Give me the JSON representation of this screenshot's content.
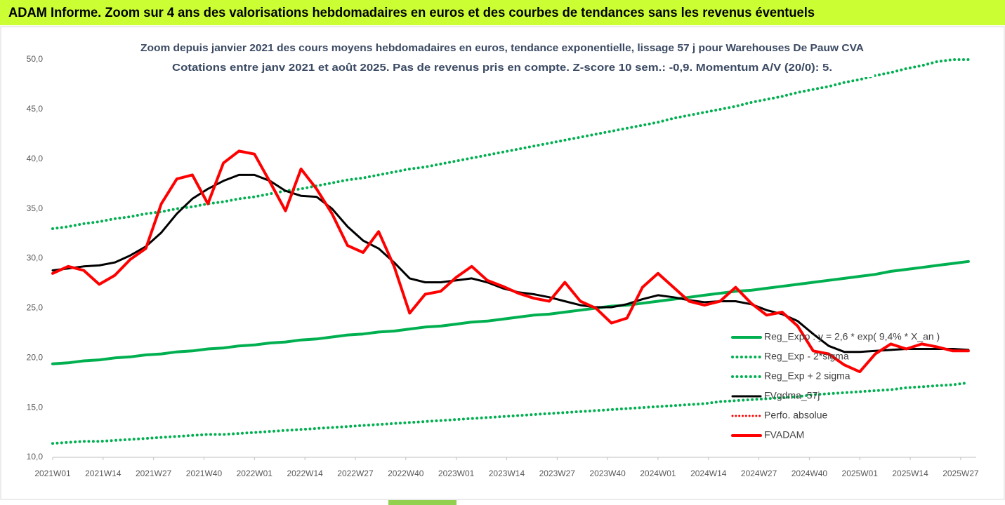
{
  "chart_data": {
    "type": "line",
    "header": "ADAM Informe. Zoom sur 4 ans des valorisations hebdomadaires en euros et des courbes de tendances sans les revenus éventuels",
    "title": "Zoom depuis janvier 2021 des cours moyens hebdomadaires en euros, tendance exponentielle, lissage 57 j pour Warehouses De Pauw CVA",
    "subtitle": "Cotations entre janv 2021 et août 2025. Pas de revenus pris en compte. Z-score 10 sem.: -0,9. Momentum A/V (20/0): 5.",
    "x": [
      0,
      4,
      8,
      12,
      16,
      20,
      24,
      28,
      32,
      36,
      40,
      44,
      48,
      52,
      56,
      60,
      64,
      68,
      72,
      76,
      80,
      84,
      88,
      92,
      96,
      100,
      104,
      108,
      112,
      116,
      120,
      124,
      128,
      132,
      136,
      140,
      144,
      148,
      152,
      156,
      160,
      164,
      168,
      172,
      176,
      180,
      184,
      188,
      192,
      196,
      200,
      204,
      208,
      212,
      216,
      220,
      224,
      228,
      232,
      236
    ],
    "xlim": [
      0,
      238
    ],
    "xticks": [
      {
        "value": 0,
        "label": "2021W01"
      },
      {
        "value": 13,
        "label": "2021W14"
      },
      {
        "value": 26,
        "label": "2021W27"
      },
      {
        "value": 39,
        "label": "2021W40"
      },
      {
        "value": 52,
        "label": "2022W01"
      },
      {
        "value": 65,
        "label": "2022W14"
      },
      {
        "value": 78,
        "label": "2022W27"
      },
      {
        "value": 91,
        "label": "2022W40"
      },
      {
        "value": 104,
        "label": "2023W01"
      },
      {
        "value": 117,
        "label": "2023W14"
      },
      {
        "value": 130,
        "label": "2023W27"
      },
      {
        "value": 143,
        "label": "2023W40"
      },
      {
        "value": 156,
        "label": "2024W01"
      },
      {
        "value": 169,
        "label": "2024W14"
      },
      {
        "value": 182,
        "label": "2024W27"
      },
      {
        "value": 195,
        "label": "2024W40"
      },
      {
        "value": 208,
        "label": "2025W01"
      },
      {
        "value": 221,
        "label": "2025W14"
      },
      {
        "value": 234,
        "label": "2025W27"
      }
    ],
    "ylim": [
      10,
      50
    ],
    "yticks": [
      {
        "value": 10,
        "label": "10,0"
      },
      {
        "value": 15,
        "label": "15,0"
      },
      {
        "value": 20,
        "label": "20,0"
      },
      {
        "value": 25,
        "label": "25,0"
      },
      {
        "value": 30,
        "label": "30,0"
      },
      {
        "value": 35,
        "label": "35,0"
      },
      {
        "value": 40,
        "label": "40,0"
      },
      {
        "value": 45,
        "label": "45,0"
      },
      {
        "value": 50,
        "label": "50,0"
      }
    ],
    "grid": false,
    "legend": "right",
    "series": [
      {
        "name": "Reg_Expo : y = 2,6 * exp( 9,4% * X_an )",
        "color": "#00b050",
        "dash": "solid",
        "width": 4,
        "values": [
          19.4,
          19.5,
          19.7,
          19.8,
          20.0,
          20.1,
          20.3,
          20.4,
          20.6,
          20.7,
          20.9,
          21.0,
          21.2,
          21.3,
          21.5,
          21.6,
          21.8,
          21.9,
          22.1,
          22.3,
          22.4,
          22.6,
          22.7,
          22.9,
          23.1,
          23.2,
          23.4,
          23.6,
          23.7,
          23.9,
          24.1,
          24.3,
          24.4,
          24.6,
          24.8,
          25.0,
          25.2,
          25.3,
          25.5,
          25.7,
          25.9,
          26.1,
          26.3,
          26.5,
          26.7,
          26.8,
          27.0,
          27.2,
          27.4,
          27.6,
          27.8,
          28.0,
          28.2,
          28.4,
          28.7,
          28.9,
          29.1,
          29.3,
          29.5,
          29.7
        ]
      },
      {
        "name": "Reg_Exp - 2*sigma",
        "color": "#00b050",
        "dash": "dotted",
        "width": 4,
        "values": [
          11.4,
          11.5,
          11.6,
          11.6,
          11.7,
          11.8,
          11.9,
          12.0,
          12.1,
          12.2,
          12.3,
          12.3,
          12.4,
          12.5,
          12.6,
          12.7,
          12.8,
          12.9,
          13.0,
          13.1,
          13.2,
          13.3,
          13.4,
          13.5,
          13.6,
          13.7,
          13.8,
          13.9,
          14.0,
          14.1,
          14.2,
          14.3,
          14.4,
          14.5,
          14.6,
          14.7,
          14.8,
          14.9,
          15.0,
          15.1,
          15.2,
          15.3,
          15.4,
          15.6,
          15.7,
          15.8,
          15.9,
          16.0,
          16.1,
          16.3,
          16.4,
          16.5,
          16.6,
          16.7,
          16.8,
          17.0,
          17.1,
          17.2,
          17.3,
          17.5
        ]
      },
      {
        "name": "Reg_Exp + 2 sigma",
        "color": "#00b050",
        "dash": "dotted",
        "width": 4,
        "values": [
          33.0,
          33.2,
          33.5,
          33.7,
          34.0,
          34.2,
          34.5,
          34.7,
          35.0,
          35.2,
          35.5,
          35.7,
          36.0,
          36.2,
          36.5,
          36.8,
          37.0,
          37.3,
          37.6,
          37.9,
          38.1,
          38.4,
          38.7,
          39.0,
          39.2,
          39.5,
          39.8,
          40.1,
          40.4,
          40.7,
          41.0,
          41.3,
          41.6,
          41.9,
          42.2,
          42.5,
          42.8,
          43.1,
          43.4,
          43.7,
          44.1,
          44.4,
          44.7,
          45.0,
          45.3,
          45.7,
          46.0,
          46.3,
          46.7,
          47.0,
          47.3,
          47.7,
          48.0,
          48.4,
          48.7,
          49.1,
          49.4,
          49.8,
          50.0,
          50.0
        ]
      },
      {
        "name": "FVgdma_57j",
        "color": "#000000",
        "dash": "solid",
        "width": 3,
        "values": [
          28.8,
          29.0,
          29.2,
          29.3,
          29.6,
          30.3,
          31.2,
          32.6,
          34.5,
          36.0,
          37.0,
          37.8,
          38.4,
          38.4,
          37.8,
          36.8,
          36.3,
          36.2,
          35.0,
          33.2,
          31.8,
          31.0,
          29.6,
          28.0,
          27.6,
          27.6,
          27.8,
          28.0,
          27.6,
          27.0,
          26.6,
          26.4,
          26.1,
          25.7,
          25.3,
          25.1,
          25.1,
          25.4,
          25.9,
          26.3,
          26.1,
          25.8,
          25.6,
          25.7,
          25.7,
          25.4,
          24.8,
          24.4,
          23.7,
          22.4,
          21.2,
          20.6,
          20.6,
          20.7,
          20.8,
          20.9,
          20.9,
          20.9,
          20.9,
          20.8
        ]
      },
      {
        "name": "Perfo. absolue",
        "color": "#ff0000",
        "dash": "dotted",
        "width": 3,
        "values": [
          null,
          null,
          null,
          null,
          null,
          null,
          null,
          null,
          null,
          null,
          null,
          null,
          null,
          null,
          null,
          null,
          null,
          null,
          null,
          null,
          null,
          null,
          null,
          null,
          null,
          null,
          null,
          null,
          null,
          null,
          null,
          null,
          null,
          null,
          null,
          null,
          null,
          null,
          null,
          null,
          null,
          null,
          null,
          null,
          null,
          null,
          null,
          null,
          null,
          null,
          null,
          null,
          null,
          null,
          null,
          null,
          null,
          null,
          null,
          null
        ]
      },
      {
        "name": "FVADAM",
        "color": "#ff0000",
        "dash": "solid",
        "width": 4,
        "values": [
          28.5,
          29.2,
          28.8,
          27.4,
          28.3,
          29.9,
          31.0,
          35.5,
          38.0,
          38.4,
          35.5,
          39.6,
          40.8,
          40.5,
          37.7,
          34.8,
          39.0,
          37.0,
          34.5,
          31.3,
          30.6,
          32.7,
          29.2,
          24.5,
          26.4,
          26.7,
          28.1,
          29.2,
          27.8,
          27.2,
          26.5,
          26.0,
          25.7,
          27.6,
          25.7,
          25.0,
          23.5,
          24.0,
          27.1,
          28.5,
          27.1,
          25.7,
          25.3,
          25.7,
          27.1,
          25.5,
          24.3,
          24.6,
          23.2,
          20.7,
          20.4,
          19.3,
          18.6,
          20.4,
          21.4,
          20.9,
          21.4,
          21.1,
          20.7,
          20.7
        ]
      }
    ]
  }
}
